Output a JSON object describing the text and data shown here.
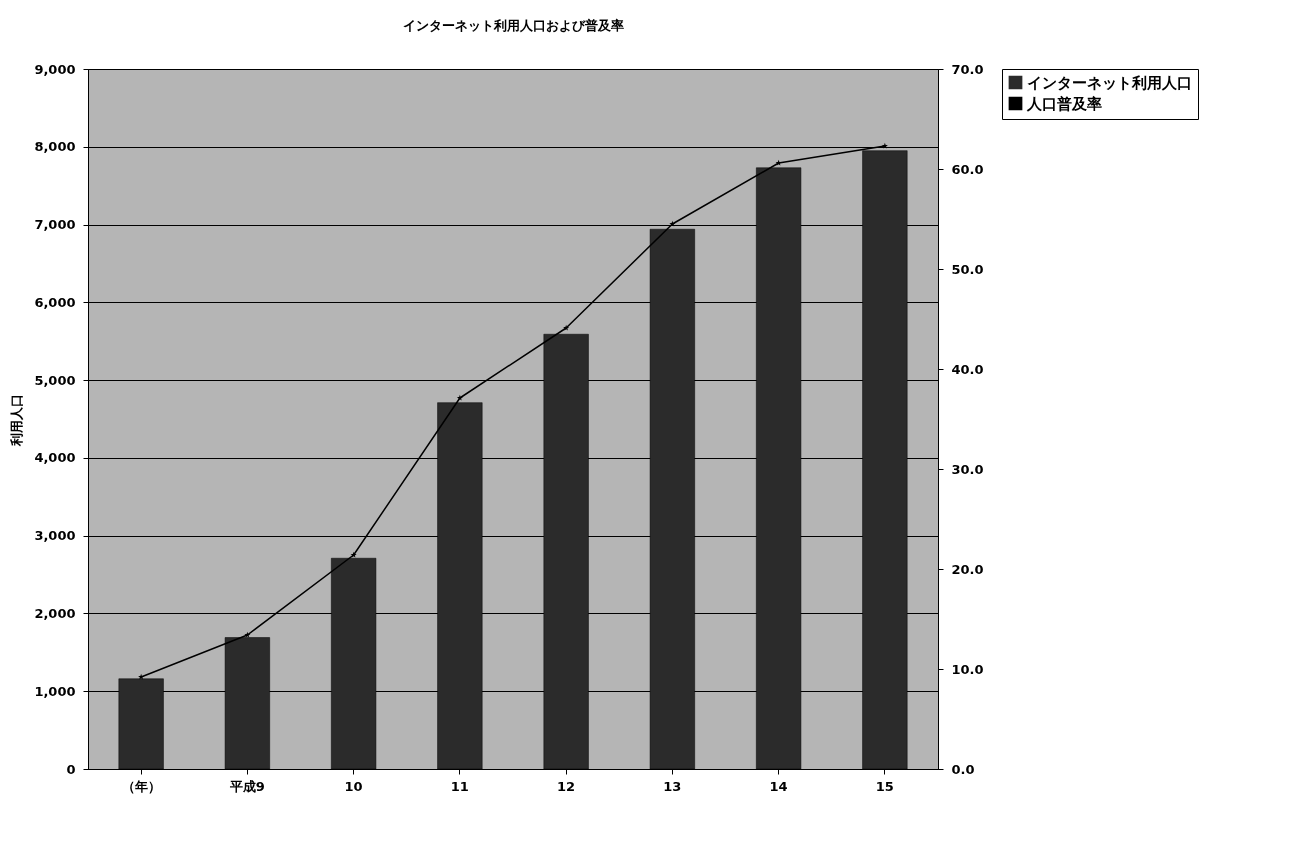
{
  "chart_data": {
    "type": "bar",
    "title": "インターネット利用人口および普及率",
    "categories": [
      "（年）",
      "平成9",
      "10",
      "11",
      "12",
      "13",
      "14",
      "15"
    ],
    "series": [
      {
        "name": "インターネット利用人口",
        "color": "#2b2b2b",
        "values": [
          1160,
          1690,
          2710,
          4710,
          5590,
          6940,
          7730,
          7950
        ]
      },
      {
        "name": "人口普及率",
        "type": "line",
        "axis": "y2",
        "color": "#000000",
        "marker": "star",
        "values": [
          9.2,
          13.4,
          21.4,
          37.1,
          44.1,
          54.5,
          60.6,
          62.3
        ]
      }
    ],
    "ylabel": "利用人口",
    "ylim": [
      0,
      9000
    ],
    "yticks": [
      {
        "value": 0,
        "label": "0"
      },
      {
        "value": 1000,
        "label": "1,000"
      },
      {
        "value": 2000,
        "label": "2,000"
      },
      {
        "value": 3000,
        "label": "3,000"
      },
      {
        "value": 4000,
        "label": "4,000"
      },
      {
        "value": 5000,
        "label": "5,000"
      },
      {
        "value": 6000,
        "label": "6,000"
      },
      {
        "value": 7000,
        "label": "7,000"
      },
      {
        "value": 8000,
        "label": "8,000"
      },
      {
        "value": 9000,
        "label": "9,000"
      }
    ],
    "y2lim": [
      0,
      70
    ],
    "y2ticks": [
      {
        "value": 0,
        "label": "0.0"
      },
      {
        "value": 10,
        "label": "10.0"
      },
      {
        "value": 20,
        "label": "20.0"
      },
      {
        "value": 30,
        "label": "30.0"
      },
      {
        "value": 40,
        "label": "40.0"
      },
      {
        "value": 50,
        "label": "50.0"
      },
      {
        "value": 60,
        "label": "60.0"
      },
      {
        "value": 70,
        "label": "70.0"
      }
    ],
    "grid": "y",
    "legend": "right"
  }
}
